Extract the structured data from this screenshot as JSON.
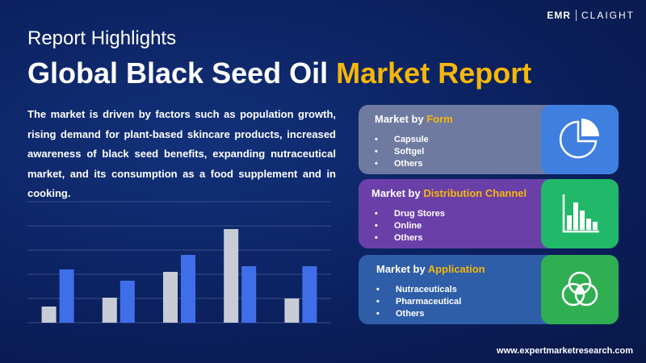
{
  "logo": {
    "left": "EMR",
    "right": "CLAIGHT"
  },
  "header": {
    "subtitle": "Report Highlights",
    "title_main": "Global Black Seed Oil ",
    "title_highlight": "Market Report"
  },
  "description": "The market is driven by factors such as population growth, rising demand for plant-based skincare products, increased awareness of black seed benefits, expanding nutraceutical market, and its consumption as a food supplement and in cooking.",
  "colors": {
    "background": "#0b1f5c",
    "accent": "#f5b70a",
    "bar_gray": "#c8ccd6",
    "bar_blue": "#3f6fe8"
  },
  "chart_data": {
    "type": "bar",
    "categories": [
      "",
      "",
      "",
      "",
      ""
    ],
    "series": [
      {
        "values": [
          20,
          31,
          63,
          116,
          30
        ]
      },
      {
        "values": [
          66,
          52,
          84,
          70,
          70
        ]
      }
    ],
    "ylim": [
      0,
      150
    ],
    "grid": true,
    "legend": "none",
    "xlabel": "",
    "ylabel": ""
  },
  "cards": [
    {
      "prefix": "Market by ",
      "highlight": "Form",
      "items": [
        "Capsule",
        "Softgel",
        "Others"
      ],
      "icon": "pie-chart-icon"
    },
    {
      "prefix": "Market by ",
      "highlight": "Distribution Channel",
      "items": [
        "Drug Stores",
        "Online",
        "Others"
      ],
      "icon": "bar-chart-icon"
    },
    {
      "prefix": "Market by ",
      "highlight": "Application",
      "items": [
        "Nutraceuticals",
        "Pharmaceutical",
        "Others"
      ],
      "icon": "venn-diagram-icon"
    }
  ],
  "bullet": "•",
  "footer": "www.expertmarketresearch.com"
}
